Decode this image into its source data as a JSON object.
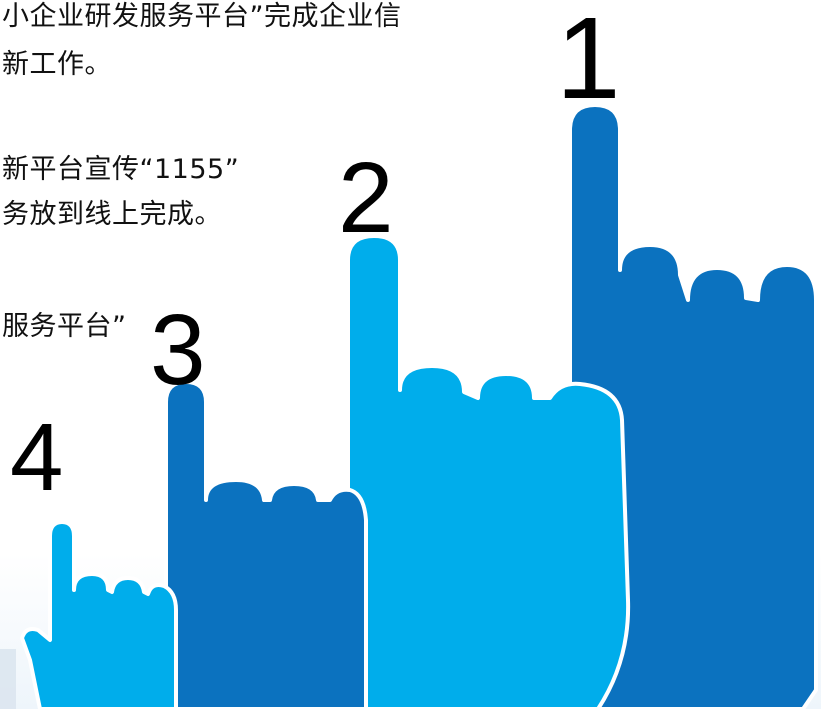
{
  "text_lines": [
    "小企业研发服务平台”完成企业信",
    "新工作。",
    "新平台宣传“1155”",
    "务放到线上完成。",
    "服务平台”"
  ],
  "numbers": [
    "1",
    "2",
    "3",
    "4"
  ],
  "colors": {
    "dark_blue": "#0b72bf",
    "light_blue": "#00adeb",
    "outline": "#ffffff",
    "text": "#111111"
  },
  "icons": [
    "pointing-hand-icon"
  ]
}
